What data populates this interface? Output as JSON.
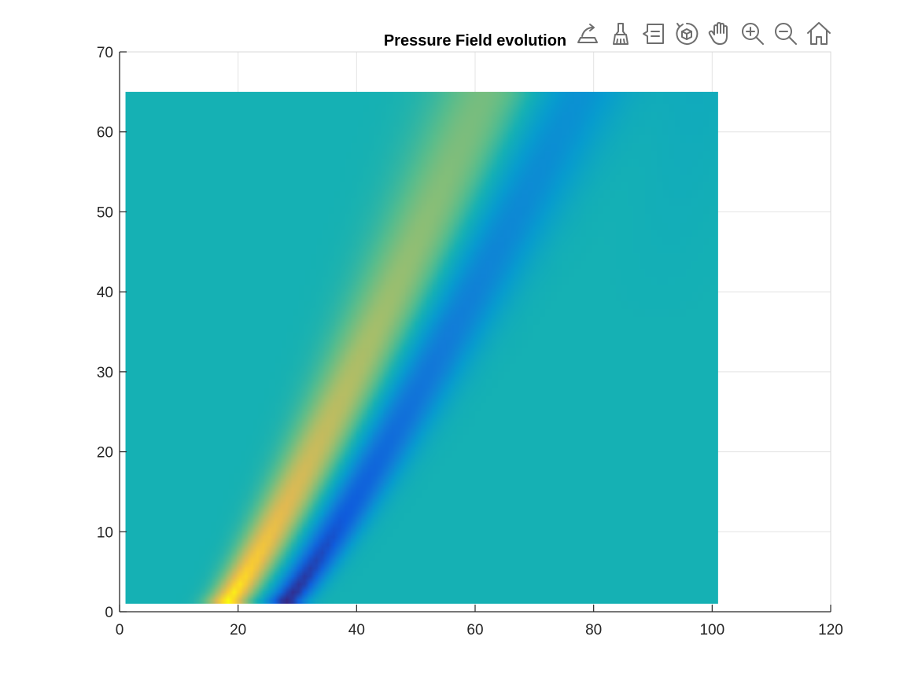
{
  "chart_data": {
    "type": "heatmap",
    "title": "Pressure Field evolution",
    "xlabel": "",
    "ylabel": "",
    "xlim": [
      0,
      120
    ],
    "ylim": [
      0,
      70
    ],
    "x_ticks": [
      "0",
      "20",
      "40",
      "60",
      "80",
      "100",
      "120"
    ],
    "y_ticks": [
      "0",
      "10",
      "20",
      "30",
      "40",
      "50",
      "60",
      "70"
    ],
    "grid": true,
    "data_extent": {
      "x": [
        1,
        101
      ],
      "y": [
        1,
        65
      ]
    },
    "colormap": "parula",
    "background_color": "#14BFB5",
    "field_description_values": {
      "positive_ridge_start_x": 18,
      "positive_ridge_end_x": 62,
      "negative_ridge_start_x": 28,
      "negative_ridge_end_x": 77
    }
  },
  "toolbar": {
    "items": [
      {
        "name": "export-icon"
      },
      {
        "name": "brush-icon"
      },
      {
        "name": "datatip-icon"
      },
      {
        "name": "rotate-3d-icon"
      },
      {
        "name": "pan-hand-icon"
      },
      {
        "name": "zoom-in-icon"
      },
      {
        "name": "zoom-out-icon"
      },
      {
        "name": "home-icon"
      }
    ]
  }
}
